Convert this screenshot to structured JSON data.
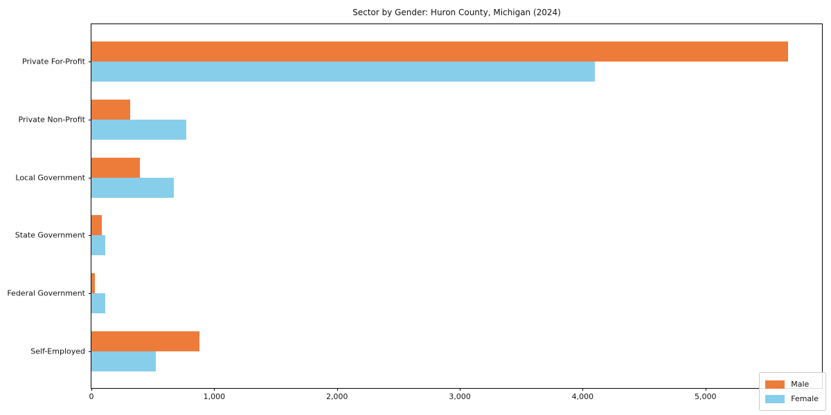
{
  "title": "Sector by Gender: Huron County, Michigan (2024)",
  "chart_data": {
    "type": "bar",
    "orientation": "horizontal",
    "title": "Sector by Gender: Huron County, Michigan (2024)",
    "xlabel": "",
    "ylabel": "",
    "categories": [
      "Private For-Profit",
      "Private Non-Profit",
      "Local Government",
      "State Government",
      "Federal Government",
      "Self-Employed"
    ],
    "series": [
      {
        "name": "Male",
        "color": "#ED7C3B",
        "values": [
          5670,
          315,
          395,
          85,
          30,
          880
        ]
      },
      {
        "name": "Female",
        "color": "#87CEEB",
        "values": [
          4100,
          775,
          670,
          115,
          115,
          525
        ]
      }
    ],
    "xlim": [
      0,
      5960
    ],
    "xticks": [
      0,
      1000,
      2000,
      3000,
      4000,
      5000
    ],
    "xtick_labels": [
      "0",
      "1,000",
      "2,000",
      "3,000",
      "4,000",
      "5,000"
    ],
    "grid": false,
    "legend_position": "lower right"
  },
  "legend": {
    "items": [
      {
        "label": "Male",
        "color": "#ED7C3B"
      },
      {
        "label": "Female",
        "color": "#87CEEB"
      }
    ]
  }
}
